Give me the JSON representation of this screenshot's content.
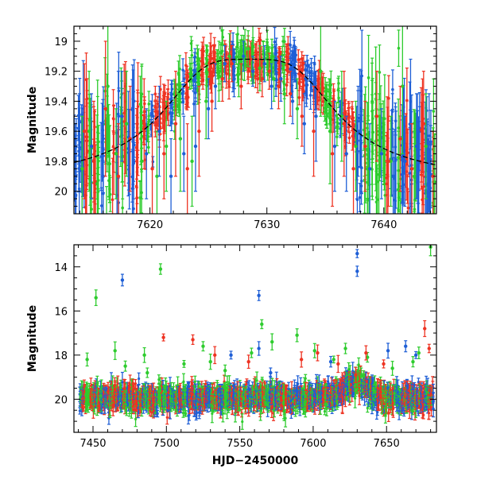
{
  "chart_data": [
    {
      "type": "scatter",
      "panel": "top",
      "xlabel": "",
      "ylabel": "Magnitude",
      "xlim": [
        7613.5,
        7644.5
      ],
      "ylim": [
        20.15,
        18.9
      ],
      "y_inverted": true,
      "x_ticks": [
        7620,
        7630,
        7640
      ],
      "x_tick_labels": [
        "7620",
        "7630",
        "7640"
      ],
      "y_ticks": [
        19,
        19.2,
        19.4,
        19.6,
        19.8,
        20
      ],
      "y_tick_labels": [
        "19",
        "19.2",
        "19.4",
        "19.6",
        "19.8",
        "20"
      ],
      "grid": false,
      "model_curve": {
        "style": "dashed",
        "color": "#000000",
        "peak_x": 7628.5,
        "peak_y": 19.12,
        "baseline_y": 19.95,
        "timescale": 5.5
      },
      "series": [
        {
          "color": "#2ecc2e",
          "mark": "point-with-errorbar"
        },
        {
          "color": "#1f5fd6",
          "mark": "point-with-errorbar"
        },
        {
          "color": "#ee3322",
          "mark": "point-with-errorbar"
        }
      ],
      "points": {
        "green": [
          [
            7614.2,
            19.85,
            0.35
          ],
          [
            7614.8,
            19.6,
            0.4
          ],
          [
            7615.5,
            19.95,
            0.3
          ],
          [
            7616.4,
            19.3,
            0.45
          ],
          [
            7617.1,
            19.75,
            0.3
          ],
          [
            7618.0,
            19.55,
            0.35
          ],
          [
            7619.3,
            19.8,
            0.25
          ],
          [
            7620.6,
            19.9,
            0.3
          ],
          [
            7621.4,
            19.7,
            0.3
          ],
          [
            7622.6,
            19.65,
            0.35
          ],
          [
            7623.6,
            19.8,
            0.3
          ],
          [
            7624.8,
            19.4,
            0.25
          ],
          [
            7625.9,
            19.2,
            0.2
          ],
          [
            7626.8,
            19.1,
            0.15
          ],
          [
            7627.6,
            19.22,
            0.15
          ],
          [
            7628.4,
            19.05,
            0.12
          ],
          [
            7629.4,
            19.18,
            0.15
          ],
          [
            7630.6,
            19.25,
            0.15
          ],
          [
            7631.5,
            19.35,
            0.2
          ],
          [
            7632.6,
            19.45,
            0.2
          ],
          [
            7634.6,
            19.2,
            0.3
          ],
          [
            7635.4,
            19.6,
            0.35
          ],
          [
            7636.4,
            19.5,
            0.3
          ],
          [
            7637.6,
            19.7,
            0.3
          ],
          [
            7638.6,
            19.85,
            0.3
          ],
          [
            7639.6,
            19.6,
            0.25
          ],
          [
            7640.6,
            19.8,
            0.3
          ],
          [
            7641.6,
            19.3,
            0.45
          ],
          [
            7642.6,
            19.9,
            0.3
          ],
          [
            7643.6,
            19.7,
            0.35
          ]
        ],
        "blue": [
          [
            7615.0,
            19.7,
            0.35
          ],
          [
            7616.0,
            19.9,
            0.25
          ],
          [
            7617.6,
            19.5,
            0.3
          ],
          [
            7618.6,
            19.8,
            0.25
          ],
          [
            7619.7,
            19.75,
            0.3
          ],
          [
            7620.8,
            19.6,
            0.3
          ],
          [
            7621.8,
            19.9,
            0.25
          ],
          [
            7622.9,
            19.75,
            0.25
          ],
          [
            7623.9,
            19.7,
            0.3
          ],
          [
            7625.0,
            19.45,
            0.2
          ],
          [
            7625.6,
            19.3,
            0.15
          ],
          [
            7626.4,
            19.15,
            0.12
          ],
          [
            7627.2,
            19.25,
            0.12
          ],
          [
            7628.0,
            19.1,
            0.1
          ],
          [
            7628.8,
            19.2,
            0.1
          ],
          [
            7629.8,
            19.15,
            0.12
          ],
          [
            7630.4,
            19.3,
            0.15
          ],
          [
            7631.2,
            19.25,
            0.15
          ],
          [
            7632.2,
            19.4,
            0.15
          ],
          [
            7633.2,
            19.55,
            0.2
          ],
          [
            7634.2,
            19.5,
            0.3
          ],
          [
            7635.8,
            19.7,
            0.3
          ],
          [
            7636.8,
            19.75,
            0.25
          ],
          [
            7637.8,
            19.6,
            0.3
          ],
          [
            7638.8,
            19.85,
            0.3
          ],
          [
            7639.8,
            19.75,
            0.3
          ],
          [
            7640.8,
            19.9,
            0.3
          ],
          [
            7641.8,
            19.8,
            0.3
          ],
          [
            7642.8,
            19.7,
            0.35
          ],
          [
            7643.8,
            19.95,
            0.3
          ]
        ],
        "red": [
          [
            7614.4,
            19.6,
            0.45
          ],
          [
            7615.2,
            19.8,
            0.4
          ],
          [
            7616.2,
            19.45,
            0.45
          ],
          [
            7617.3,
            19.9,
            0.35
          ],
          [
            7618.3,
            19.65,
            0.35
          ],
          [
            7619.5,
            19.55,
            0.3
          ],
          [
            7620.2,
            19.85,
            0.3
          ],
          [
            7621.2,
            19.75,
            0.3
          ],
          [
            7622.2,
            19.55,
            0.35
          ],
          [
            7623.2,
            19.85,
            0.3
          ],
          [
            7624.2,
            19.6,
            0.3
          ],
          [
            7625.3,
            19.4,
            0.2
          ],
          [
            7626.2,
            19.25,
            0.15
          ],
          [
            7627.0,
            19.15,
            0.12
          ],
          [
            7627.8,
            19.3,
            0.15
          ],
          [
            7628.6,
            19.12,
            0.12
          ],
          [
            7629.6,
            19.25,
            0.12
          ],
          [
            7630.2,
            19.2,
            0.12
          ],
          [
            7631.0,
            19.3,
            0.15
          ],
          [
            7632.0,
            19.35,
            0.15
          ],
          [
            7633.0,
            19.5,
            0.2
          ],
          [
            7634.0,
            19.6,
            0.3
          ],
          [
            7635.6,
            19.75,
            0.35
          ],
          [
            7636.6,
            19.55,
            0.35
          ],
          [
            7637.4,
            19.85,
            0.3
          ],
          [
            7638.4,
            19.7,
            0.3
          ],
          [
            7639.4,
            19.5,
            0.3
          ],
          [
            7640.4,
            19.8,
            0.3
          ],
          [
            7641.4,
            19.65,
            0.35
          ],
          [
            7642.4,
            19.85,
            0.3
          ],
          [
            7643.4,
            19.55,
            0.35
          ],
          [
            7644.2,
            19.9,
            0.3
          ]
        ]
      }
    },
    {
      "type": "scatter",
      "panel": "bottom",
      "xlabel": "HJD−2450000",
      "ylabel": "Magnitude",
      "xlim": [
        7437,
        7684
      ],
      "ylim": [
        21.5,
        13.0
      ],
      "y_inverted": true,
      "x_ticks": [
        7450,
        7500,
        7550,
        7600,
        7650
      ],
      "x_tick_labels": [
        "7450",
        "7500",
        "7550",
        "7600",
        "7650"
      ],
      "y_ticks": [
        14,
        16,
        18,
        20
      ],
      "y_tick_labels": [
        "14",
        "16",
        "18",
        "20"
      ],
      "grid": false,
      "baseline_mag": 19.95,
      "peak": {
        "x": 7628.5,
        "y": 19.2
      },
      "series": [
        {
          "color": "#2ecc2e",
          "mark": "point-with-errorbar"
        },
        {
          "color": "#1f5fd6",
          "mark": "point-with-errorbar"
        },
        {
          "color": "#ee3322",
          "mark": "point-with-errorbar"
        }
      ],
      "outliers": {
        "green": [
          [
            7452,
            15.4
          ],
          [
            7446,
            18.2
          ],
          [
            7465,
            17.8
          ],
          [
            7472,
            18.5
          ],
          [
            7496,
            14.1
          ],
          [
            7485,
            18.0
          ],
          [
            7512,
            18.4
          ],
          [
            7525,
            17.6
          ],
          [
            7540,
            18.7
          ],
          [
            7558,
            17.9
          ],
          [
            7565,
            16.6
          ],
          [
            7572,
            17.4
          ],
          [
            7589,
            17.1
          ],
          [
            7601,
            17.8
          ],
          [
            7614,
            18.2
          ],
          [
            7622,
            17.7
          ],
          [
            7637,
            18.1
          ],
          [
            7654,
            18.6
          ],
          [
            7672,
            17.9
          ],
          [
            7680,
            13.1
          ],
          [
            7668,
            18.3
          ],
          [
            7487,
            18.8
          ],
          [
            7530,
            18.3
          ]
        ],
        "blue": [
          [
            7470,
            14.6
          ],
          [
            7563,
            15.3
          ],
          [
            7630,
            13.4
          ],
          [
            7630,
            14.2
          ],
          [
            7544,
            18.0
          ],
          [
            7563,
            17.7
          ],
          [
            7571,
            18.8
          ],
          [
            7612,
            18.3
          ],
          [
            7651,
            17.8
          ],
          [
            7663,
            17.6
          ],
          [
            7670,
            18.0
          ]
        ],
        "red": [
          [
            7498,
            17.2
          ],
          [
            7518,
            17.3
          ],
          [
            7533,
            18.0
          ],
          [
            7556,
            18.3
          ],
          [
            7603,
            17.9
          ],
          [
            7617,
            18.4
          ],
          [
            7629,
            18.9
          ],
          [
            7636,
            17.9
          ],
          [
            7676,
            16.8
          ],
          [
            7679,
            17.7
          ],
          [
            7648,
            18.4
          ],
          [
            7592,
            18.2
          ]
        ]
      }
    }
  ]
}
